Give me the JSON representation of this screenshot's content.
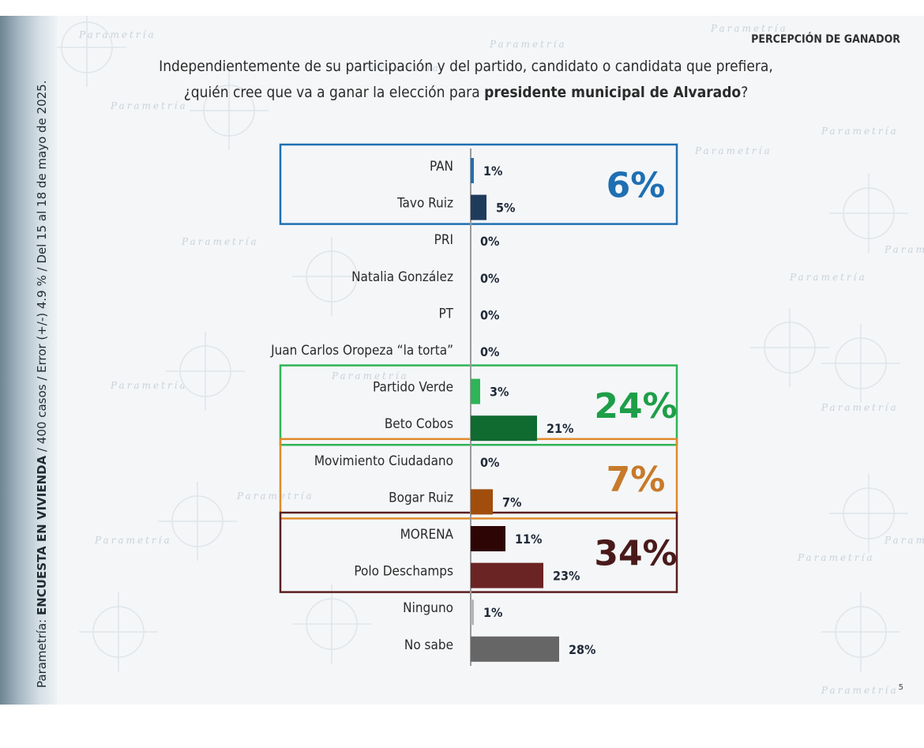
{
  "header": {
    "section_title": "PERCEPCIÓN DE GANADOR",
    "question_line1": "Independientemente de su participación y del partido, candidato o candidata que prefiera,",
    "question_line2_pre": "¿quién cree que va a ganar la elección para ",
    "question_line2_bold": "presidente municipal de Alvarado",
    "question_line2_post": "?"
  },
  "side_note": {
    "prefix": "Parametría: ",
    "bold": "ENCUESTA EN VIVIENDA",
    "suffix": " / 400 casos / Error (+/-) 4.9 % / Del 15 al 18 de mayo de 2025."
  },
  "watermark_text": "Parametría",
  "page_number": "5",
  "colors": {
    "pan": "#1f6fb2",
    "pan_candidate": "#1f3b5c",
    "pvem": "#2fb457",
    "pvem_candidate": "#0f6b30",
    "mc": "#e08a2c",
    "mc_candidate": "#a14e0d",
    "morena_border": "#5c1f1f",
    "morena": "#2e0505",
    "morena_candidate": "#6b2424",
    "ninguno": "#b5b5b5",
    "no_sabe": "#666666"
  },
  "chart_data": {
    "type": "bar",
    "orientation": "horizontal",
    "categories": [
      "PAN",
      "Tavo Ruiz",
      "PRI",
      "Natalia González",
      "PT",
      "Juan Carlos Oropeza “la torta”",
      "Partido Verde",
      "Beto Cobos",
      "Movimiento Ciudadano",
      "Bogar Ruiz",
      "MORENA",
      "Polo Deschamps",
      "Ninguno",
      "No sabe"
    ],
    "values": [
      1,
      5,
      0,
      0,
      0,
      0,
      3,
      21,
      0,
      7,
      11,
      23,
      1,
      28
    ],
    "value_labels": [
      "1%",
      "5%",
      "0%",
      "0%",
      "0%",
      "0%",
      "3%",
      "21%",
      "0%",
      "7%",
      "11%",
      "23%",
      "1%",
      "28%"
    ],
    "bar_colors": [
      "#1f6fb2",
      "#1f3b5c",
      "#888888",
      "#888888",
      "#888888",
      "#888888",
      "#2fb457",
      "#0f6b30",
      "#888888",
      "#a14e0d",
      "#2e0505",
      "#6b2424",
      "#b5b5b5",
      "#666666"
    ],
    "groups": [
      {
        "rows": [
          0,
          1
        ],
        "total": "6%",
        "color": "#1f6fb2",
        "total_color": "#1f6fb2"
      },
      {
        "rows": [
          6,
          7
        ],
        "total": "24%",
        "color": "#2fb457",
        "total_color": "#1e9e48"
      },
      {
        "rows": [
          8,
          9
        ],
        "total": "7%",
        "color": "#e08a2c",
        "total_color": "#c87a2a"
      },
      {
        "rows": [
          10,
          11
        ],
        "total": "34%",
        "color": "#5c1f1f",
        "total_color": "#4a1a1a"
      }
    ],
    "xlim": [
      0,
      30
    ],
    "title": "",
    "xlabel": "",
    "ylabel": "",
    "grid": false,
    "legend": "none"
  }
}
